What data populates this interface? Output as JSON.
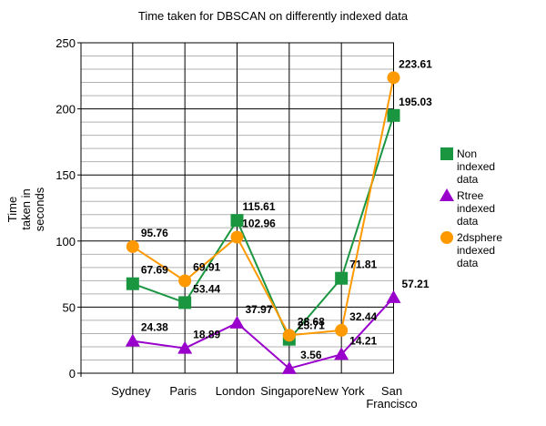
{
  "chart_data": {
    "type": "line",
    "title": "Time taken for DBSCAN on differently indexed data",
    "ylabel_lines": [
      "Time",
      "taken in",
      "seconds"
    ],
    "xlabel": "",
    "categories": [
      "Sydney",
      "Paris",
      "London",
      "Singapore",
      "New York",
      "San Francisco"
    ],
    "category_label_lines": [
      [
        "Sydney"
      ],
      [
        "Paris"
      ],
      [
        "London"
      ],
      [
        "Singapore"
      ],
      [
        "New York"
      ],
      [
        "San",
        "Francisco"
      ]
    ],
    "ylim": [
      0,
      250
    ],
    "yticks": [
      0,
      50,
      100,
      150,
      200,
      250
    ],
    "grid": true,
    "minor_grid_step": 10,
    "legend_position": "right",
    "series": [
      {
        "name": "Non indexed data",
        "legend_lines": [
          "Non",
          "indexed",
          "data"
        ],
        "color": "#1a9641",
        "marker": "square",
        "values": [
          67.69,
          53.44,
          115.61,
          25.71,
          71.81,
          195.03
        ],
        "labels": [
          "67.69",
          "53.44",
          "115.61",
          "25.71",
          "71.81",
          "195.03"
        ]
      },
      {
        "name": "Rtree indexed data",
        "legend_lines": [
          "Rtree",
          "indexed",
          "data"
        ],
        "color": "#9900cc",
        "marker": "triangle",
        "values": [
          24.38,
          18.89,
          37.97,
          3.56,
          14.21,
          57.21
        ],
        "labels": [
          "24.38",
          "18.89",
          "37.97",
          "3.56",
          "14.21",
          "57.21"
        ]
      },
      {
        "name": "2dsphere indexed data",
        "legend_lines": [
          "2dsphere",
          "indexed",
          "data"
        ],
        "color": "#ff9900",
        "marker": "circle",
        "values": [
          95.76,
          69.91,
          102.96,
          28.68,
          32.44,
          223.61
        ],
        "labels": [
          "95.76",
          "69.91",
          "102.96",
          "28.68",
          "32.44",
          "223.61"
        ]
      }
    ]
  }
}
